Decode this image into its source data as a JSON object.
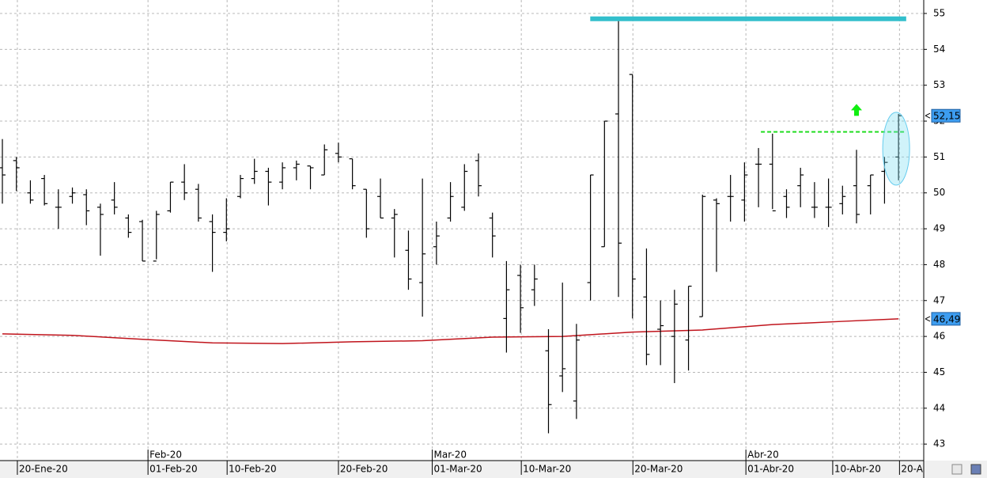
{
  "chart_data": {
    "type": "ohlc",
    "open": [
      50.7,
      50.9,
      50.0,
      50.4,
      49.6,
      49.9,
      49.95,
      49.6,
      49.8,
      49.3,
      49.2,
      48.1,
      49.5,
      50.3,
      50.1,
      49.2,
      48.9,
      49.9,
      50.4,
      50.6,
      50.3,
      50.7,
      50.75,
      50.5,
      51.1,
      50.95,
      50.1,
      49.9,
      49.3,
      48.4,
      47.5,
      48.5,
      49.3,
      49.6,
      50.9,
      49.3,
      46.5,
      47.7,
      47.3,
      45.6,
      44.9,
      44.2,
      47.5,
      48.5,
      52.2,
      53.3,
      47.1,
      46.2,
      46.0,
      45.9,
      46.55,
      49.8,
      49.9,
      49.8,
      50.8,
      50.8,
      49.9,
      50.2,
      49.6,
      49.6,
      49.7,
      50.2,
      50.2,
      50.6,
      51.0
    ],
    "high": [
      51.5,
      51.0,
      50.35,
      50.5,
      50.1,
      50.15,
      50.1,
      49.7,
      50.3,
      49.4,
      49.25,
      49.5,
      50.3,
      50.8,
      50.25,
      49.4,
      49.85,
      50.5,
      50.95,
      50.7,
      50.85,
      50.9,
      50.75,
      51.35,
      51.4,
      50.95,
      50.1,
      50.4,
      49.55,
      48.95,
      50.4,
      49.2,
      50.3,
      50.8,
      51.1,
      49.45,
      48.1,
      48.0,
      48.0,
      46.2,
      47.5,
      46.35,
      50.5,
      52.0,
      54.9,
      53.3,
      48.45,
      47.0,
      47.3,
      47.4,
      49.95,
      49.85,
      50.5,
      50.85,
      51.25,
      51.65,
      50.1,
      50.7,
      50.3,
      50.4,
      50.2,
      51.2,
      50.5,
      51.0,
      52.2
    ],
    "low": [
      49.7,
      50.05,
      49.7,
      49.65,
      49.0,
      49.7,
      49.1,
      48.25,
      49.4,
      48.75,
      48.1,
      48.15,
      49.45,
      49.8,
      49.2,
      47.8,
      48.65,
      49.85,
      50.25,
      49.65,
      50.1,
      50.35,
      50.1,
      50.5,
      50.85,
      50.1,
      48.75,
      49.3,
      48.2,
      47.3,
      46.55,
      48.0,
      49.2,
      49.5,
      49.9,
      48.2,
      45.55,
      46.1,
      46.85,
      43.3,
      44.45,
      43.7,
      47.0,
      48.5,
      47.1,
      46.5,
      45.2,
      45.2,
      44.7,
      45.05,
      46.55,
      47.8,
      49.2,
      49.2,
      49.6,
      49.55,
      49.3,
      49.6,
      49.3,
      49.05,
      49.4,
      49.15,
      49.4,
      49.7,
      50.35
    ],
    "close": [
      50.5,
      50.7,
      49.8,
      49.7,
      49.6,
      50.0,
      49.5,
      49.4,
      49.6,
      48.9,
      48.1,
      49.4,
      50.3,
      50.0,
      49.3,
      48.9,
      49.0,
      50.4,
      50.6,
      50.3,
      50.7,
      50.8,
      50.7,
      51.2,
      51.0,
      50.2,
      49.0,
      49.3,
      49.4,
      47.6,
      48.3,
      48.8,
      49.9,
      50.6,
      50.2,
      48.8,
      47.3,
      46.8,
      47.6,
      44.1,
      45.1,
      45.9,
      50.5,
      52.0,
      48.6,
      47.6,
      45.5,
      46.3,
      46.9,
      47.4,
      49.9,
      49.7,
      49.9,
      50.5,
      50.8,
      49.5,
      49.6,
      50.5,
      49.6,
      49.6,
      49.9,
      49.4,
      50.5,
      50.85,
      52.15
    ],
    "bar_color": "#000000",
    "moving_average": {
      "color": "#c0141c",
      "x": [
        0,
        5,
        10,
        15,
        20,
        25,
        30,
        35,
        40,
        45,
        50,
        55,
        60,
        64
      ],
      "values": [
        46.07,
        46.03,
        45.92,
        45.82,
        45.8,
        45.85,
        45.88,
        45.98,
        46.0,
        46.12,
        46.18,
        46.33,
        46.42,
        46.49
      ]
    },
    "resistance_line": {
      "color": "#33bfcc",
      "value": 54.85,
      "x": [
        43,
        65
      ]
    },
    "breakout_line": {
      "color": "#22dd22",
      "value": 51.7,
      "x": [
        54,
        65
      ]
    },
    "arrow": {
      "color": "#11ee11",
      "x": 61,
      "value": 52.3
    },
    "price_labels": [
      {
        "value": 52.15,
        "label": "52,15"
      },
      {
        "value": 46.49,
        "label": "46,49"
      }
    ],
    "ylim": [
      42.54,
      55.375
    ],
    "yticks": [
      43,
      44,
      45,
      46,
      47,
      48,
      49,
      50,
      51,
      52,
      53,
      54,
      55
    ],
    "xlim": [
      -0.17,
      65.8
    ],
    "xticks": [
      {
        "value": 1.07,
        "label": "20-Ene-20"
      },
      {
        "value": 10.4,
        "label": "01-Feb-20"
      },
      {
        "value": 16.05,
        "label": "10-Feb-20"
      },
      {
        "value": 24.0,
        "label": "20-Feb-20"
      },
      {
        "value": 30.7,
        "label": "01-Mar-20"
      },
      {
        "value": 37.06,
        "label": "10-Mar-20"
      },
      {
        "value": 45.03,
        "label": "20-Mar-20"
      },
      {
        "value": 53.1,
        "label": "01-Abr-20"
      },
      {
        "value": 59.3,
        "label": "10-Abr-20"
      },
      {
        "value": 64.07,
        "label": "20-A"
      }
    ],
    "month_ticks": [
      {
        "value": 10.4,
        "label": "Feb-20"
      },
      {
        "value": 30.7,
        "label": "Mar-20"
      },
      {
        "value": 53.1,
        "label": "Abr-20"
      }
    ],
    "grid": true
  }
}
